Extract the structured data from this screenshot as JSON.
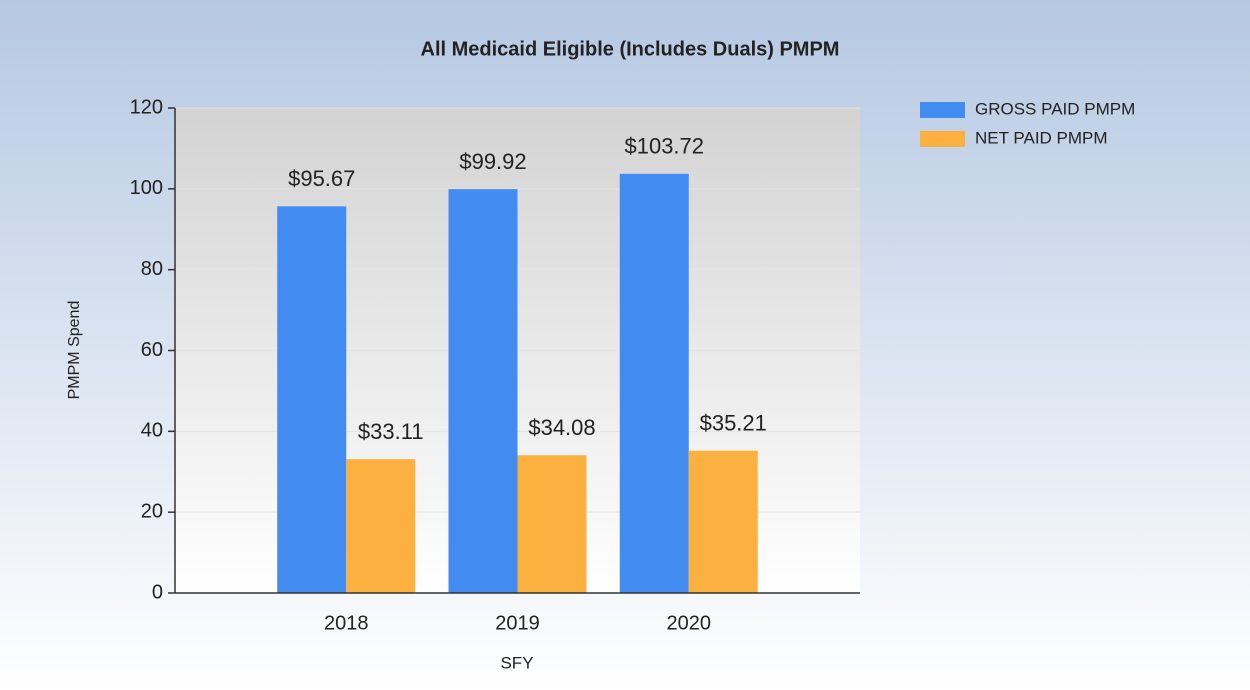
{
  "chart_data": {
    "type": "bar",
    "title": "All Medicaid Eligible (Includes Duals) PMPM",
    "categories": [
      "2018",
      "2019",
      "2020"
    ],
    "series": [
      {
        "name": "GROSS PAID PMPM",
        "color": "#428bf0",
        "values": [
          95.67,
          99.92,
          103.72
        ],
        "value_labels": [
          "$95.67",
          "$99.92",
          "$103.72"
        ]
      },
      {
        "name": "NET PAID PMPM",
        "color": "#fbb040",
        "values": [
          33.11,
          34.08,
          35.21
        ],
        "value_labels": [
          "$33.11",
          "$34.08",
          "$35.21"
        ]
      }
    ],
    "xlabel": "SFY",
    "ylabel": "PMPM Spend",
    "ylim": [
      0,
      120
    ],
    "yticks": [
      0,
      20,
      40,
      60,
      80,
      100,
      120
    ],
    "grid": true,
    "legend": "right"
  }
}
